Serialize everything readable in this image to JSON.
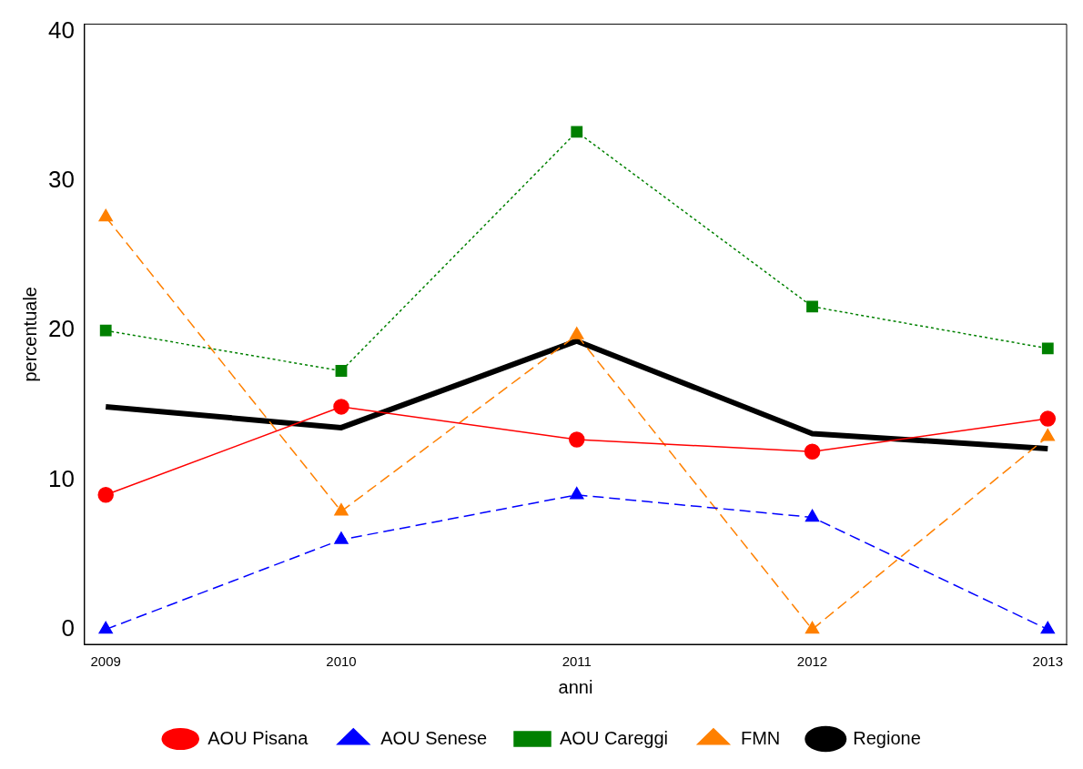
{
  "chart_data": {
    "type": "line",
    "xlabel": "anni",
    "ylabel": "percentuale",
    "x": [
      2009,
      2010,
      2011,
      2012,
      2013
    ],
    "xlim": [
      2008.91,
      2013.08
    ],
    "xticks": [
      2009,
      2010,
      2011,
      2012,
      2013
    ],
    "ylim": [
      -1,
      40.5
    ],
    "yticks": [
      0,
      10,
      20,
      30,
      40
    ],
    "grid": false,
    "legend": "bottom",
    "series": [
      {
        "name": "AOU Pisana",
        "color": "#ff0000",
        "marker": "circle",
        "line_style": "solid",
        "values": [
          9.0,
          14.9,
          12.7,
          11.9,
          14.1
        ]
      },
      {
        "name": "AOU Senese",
        "color": "#0000ff",
        "marker": "triangle",
        "line_style": "dashed",
        "values": [
          0,
          6.0,
          9.0,
          7.5,
          0
        ]
      },
      {
        "name": "AOU Careggi",
        "color": "#008000",
        "marker": "square",
        "line_style": "dotted",
        "values": [
          20.0,
          17.3,
          33.3,
          21.6,
          18.8
        ]
      },
      {
        "name": "FMN",
        "color": "#ff8000",
        "marker": "triangle",
        "line_style": "dashed",
        "values": [
          27.6,
          7.9,
          19.7,
          0,
          12.9
        ]
      },
      {
        "name": "Regione",
        "color": "#000000",
        "marker": "none",
        "line_style": "solid",
        "values": [
          14.9,
          13.5,
          19.3,
          13.1,
          12.1
        ]
      }
    ]
  }
}
